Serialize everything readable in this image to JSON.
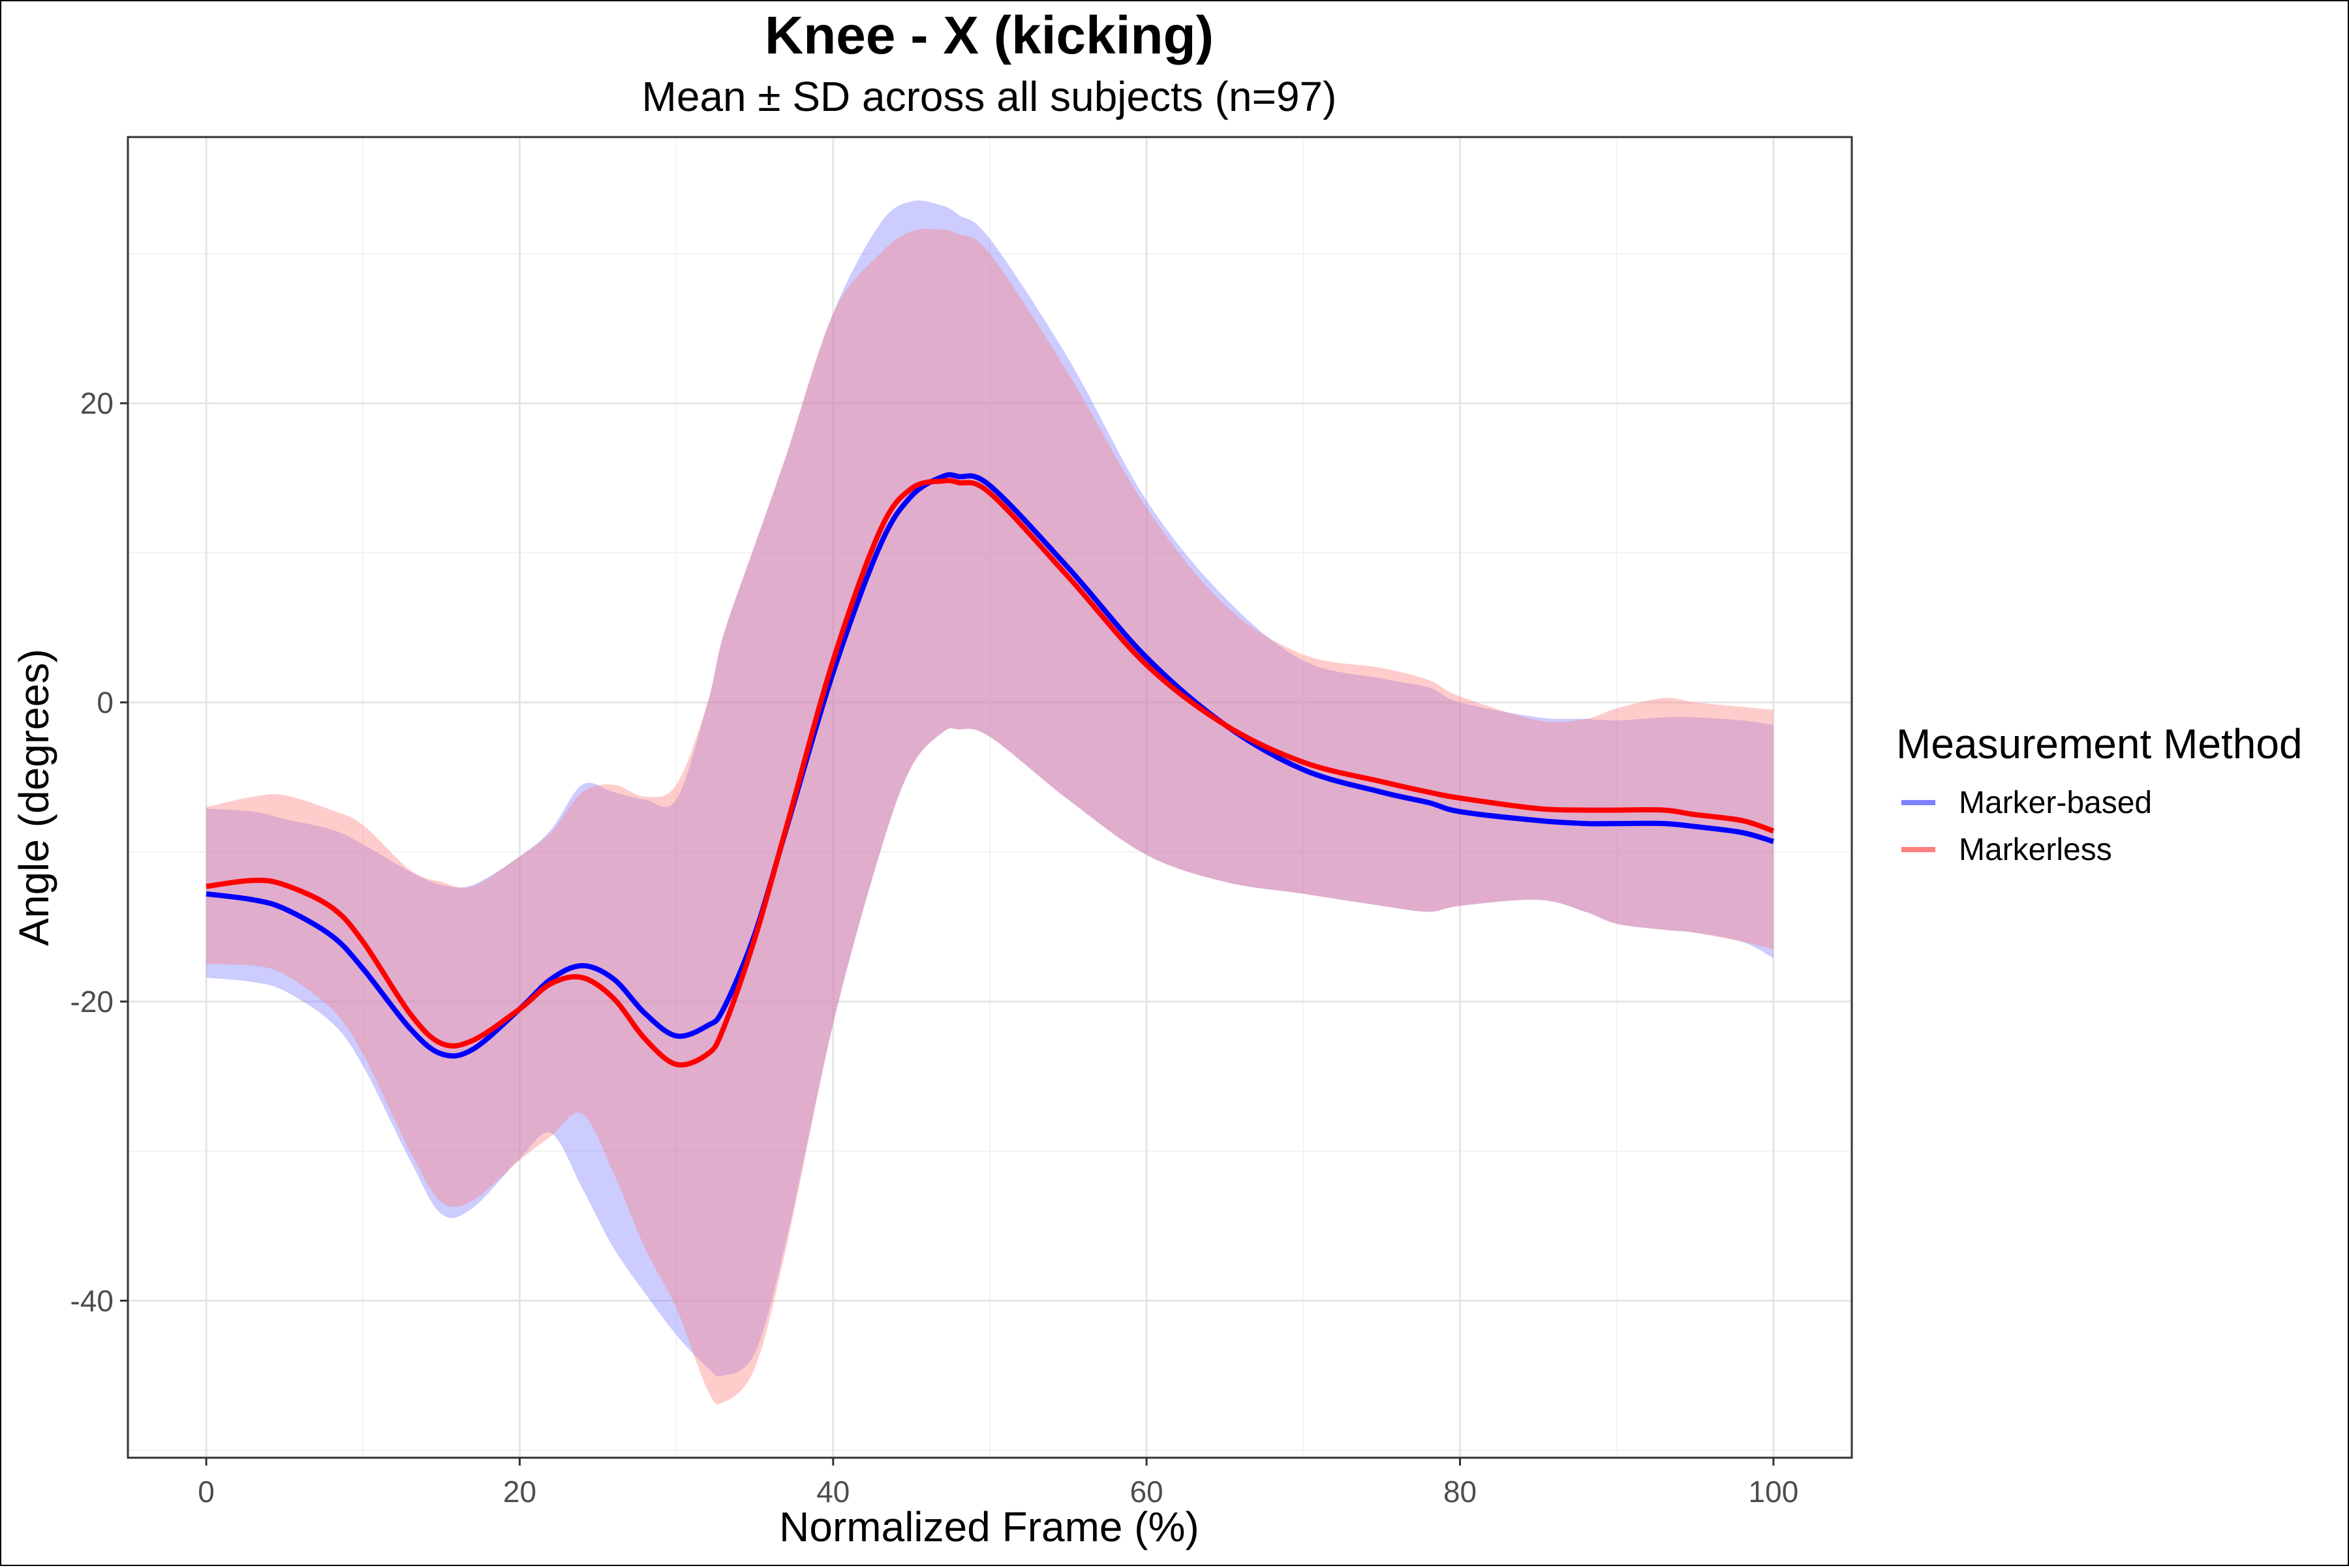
{
  "chart_data": {
    "type": "line",
    "title": "Knee - X (kicking)",
    "subtitle": "Mean ± SD across all subjects (n=97)",
    "xlabel": "Normalized Frame (%)",
    "ylabel": "Angle (degrees)",
    "xlim": [
      -5,
      105
    ],
    "ylim": [
      -50.5,
      37.8
    ],
    "x_ticks": [
      0,
      20,
      40,
      60,
      80,
      100
    ],
    "x_tick_labels": [
      "0",
      "20",
      "40",
      "60",
      "80",
      "100"
    ],
    "y_ticks": [
      -40,
      -20,
      0,
      20
    ],
    "y_tick_labels": [
      "-40",
      "-20",
      "0",
      "20"
    ],
    "grid": true,
    "legend": {
      "title": "Measurement Method",
      "position": "right"
    },
    "x": [
      0,
      3,
      5,
      8,
      10,
      13,
      15,
      17,
      20,
      22,
      24,
      26,
      28,
      30,
      32,
      33,
      35,
      37,
      40,
      43,
      45,
      47,
      48,
      50,
      55,
      60,
      65,
      70,
      75,
      78,
      80,
      85,
      88,
      90,
      93,
      95,
      98,
      100
    ],
    "series": [
      {
        "name": "Marker-based",
        "color": "#0000ff",
        "band_color": "#8080ff",
        "mean": [
          -12.8,
          -13.2,
          -13.8,
          -15.6,
          -17.8,
          -21.8,
          -23.5,
          -23.2,
          -20.5,
          -18.5,
          -17.6,
          -18.5,
          -20.8,
          -22.3,
          -21.6,
          -20.5,
          -15.5,
          -8.5,
          2,
          10.5,
          13.8,
          15.1,
          15.1,
          14.5,
          9,
          3,
          -1.5,
          -4.5,
          -6,
          -6.7,
          -7.3,
          -7.9,
          -8.1,
          -8.1,
          -8.1,
          -8.3,
          -8.7,
          -9.3
        ],
        "lower": [
          -18.4,
          -18.7,
          -19.3,
          -21.4,
          -24.3,
          -30.6,
          -34.2,
          -33.8,
          -30.5,
          -28.8,
          -32.5,
          -36.5,
          -39.5,
          -42.3,
          -44.5,
          -45,
          -43.5,
          -36,
          -21.5,
          -10,
          -4.3,
          -2,
          -1.8,
          -2.3,
          -6.5,
          -10.2,
          -12,
          -12.8,
          -13.6,
          -14,
          -13.6,
          -13.2,
          -14,
          -14.8,
          -15.2,
          -15.4,
          -16,
          -17.1
        ],
        "upper": [
          -7.1,
          -7.3,
          -7.8,
          -8.5,
          -9.5,
          -11.3,
          -12.2,
          -12.2,
          -10.3,
          -8.5,
          -5.5,
          -6,
          -6.5,
          -6.5,
          0,
          4.5,
          10.5,
          16.5,
          26,
          32,
          33.5,
          33.2,
          32.6,
          31,
          23,
          13.5,
          7,
          2.8,
          1.6,
          1,
          0,
          -1,
          -1.1,
          -1.2,
          -1,
          -1,
          -1.2,
          -1.5
        ]
      },
      {
        "name": "Markerless",
        "color": "#ff0000",
        "band_color": "#ff8080",
        "mean": [
          -12.3,
          -11.9,
          -12.2,
          -13.7,
          -16,
          -20.8,
          -22.8,
          -22.6,
          -20.5,
          -18.8,
          -18.4,
          -19.8,
          -22.5,
          -24.2,
          -23.5,
          -21.8,
          -15.8,
          -8.4,
          2.8,
          11.5,
          14.3,
          14.8,
          14.7,
          14,
          8.4,
          2.5,
          -1.5,
          -4,
          -5.3,
          -6,
          -6.4,
          -7.1,
          -7.2,
          -7.2,
          -7.2,
          -7.5,
          -7.9,
          -8.6
        ],
        "lower": [
          -17.5,
          -17.6,
          -18.2,
          -20.5,
          -23.5,
          -30,
          -33.4,
          -33.3,
          -30.6,
          -29,
          -27.5,
          -31.5,
          -36.5,
          -40.5,
          -46,
          -46.8,
          -44.5,
          -36.5,
          -21.5,
          -10,
          -4.3,
          -2,
          -1.8,
          -2.3,
          -6.5,
          -10.2,
          -12,
          -12.8,
          -13.6,
          -14,
          -13.6,
          -13.2,
          -14,
          -14.8,
          -15.2,
          -15.4,
          -16,
          -16.5
        ],
        "upper": [
          -7,
          -6.3,
          -6.2,
          -7.2,
          -8.2,
          -11.2,
          -12,
          -12.3,
          -10.3,
          -8.7,
          -6,
          -5.5,
          -6.3,
          -5.5,
          0,
          4.5,
          10.5,
          16.5,
          26,
          30,
          31.5,
          31.6,
          31.3,
          30,
          22,
          13,
          6.5,
          3.2,
          2.3,
          1.5,
          0.4,
          -1.2,
          -1.1,
          -0.4,
          0.3,
          0,
          -0.3,
          -0.5
        ]
      }
    ]
  }
}
